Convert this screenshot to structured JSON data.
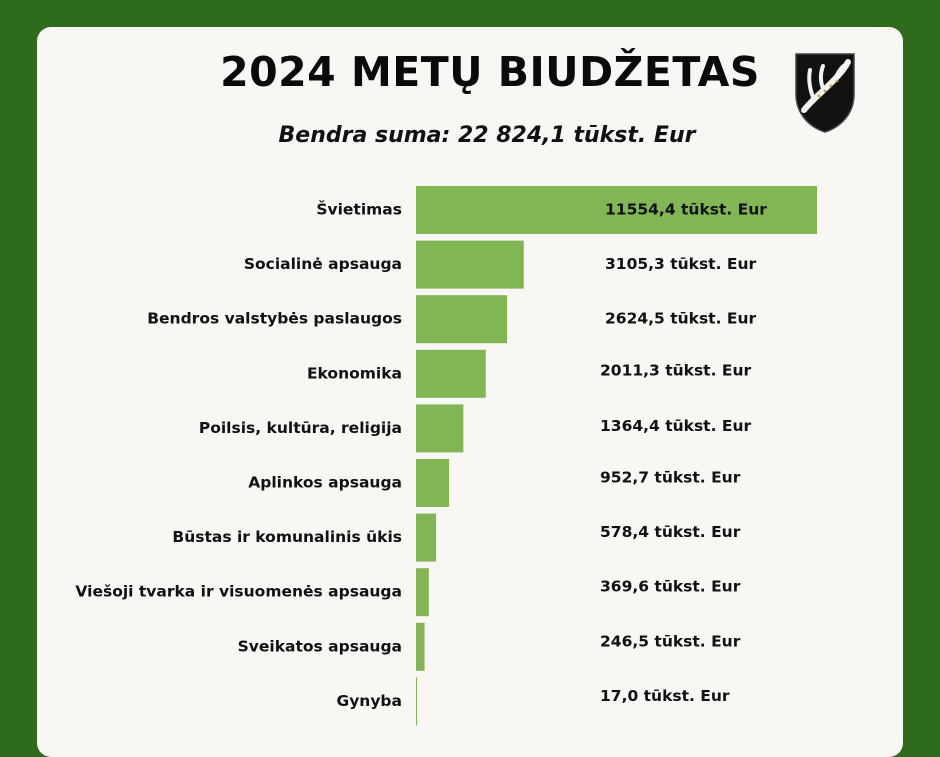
{
  "header": {
    "title": "2024 METŲ BIUDŽETAS",
    "subtitle": "Bendra suma: 22 824,1 tūkst. Eur"
  },
  "colors": {
    "background": "#2f6b1c",
    "card": "#f8f7f4",
    "bar": "#82b554",
    "text": "#111111"
  },
  "crest": {
    "icon": "antler-shield-icon"
  },
  "chart_data": {
    "type": "bar",
    "orientation": "horizontal",
    "categories": [
      "Švietimas",
      "Socialinė apsauga",
      "Bendros valstybės paslaugos",
      "Ekonomika",
      "Poilsis, kultūra, religija",
      "Aplinkos apsauga",
      "Būstas ir komunalinis ūkis",
      "Viešoji tvarka ir visuomenės apsauga",
      "Sveikatos apsauga",
      "Gynyba"
    ],
    "values": [
      11554.4,
      3105.3,
      2624.5,
      2011.3,
      1364.4,
      952.7,
      578.4,
      369.6,
      246.5,
      17.0
    ],
    "value_labels": [
      "11554,4 tūkst. Eur",
      "3105,3 tūkst. Eur",
      "2624,5 tūkst. Eur",
      "2011,3 tūkst. Eur",
      "1364,4 tūkst. Eur",
      "952,7 tūkst. Eur",
      "578,4 tūkst. Eur",
      "369,6 tūkst. Eur",
      "246,5 tūkst. Eur",
      "17,0 tūkst. Eur"
    ],
    "title": "",
    "xlabel": "",
    "ylabel": "",
    "grid": false,
    "legend": "none"
  }
}
